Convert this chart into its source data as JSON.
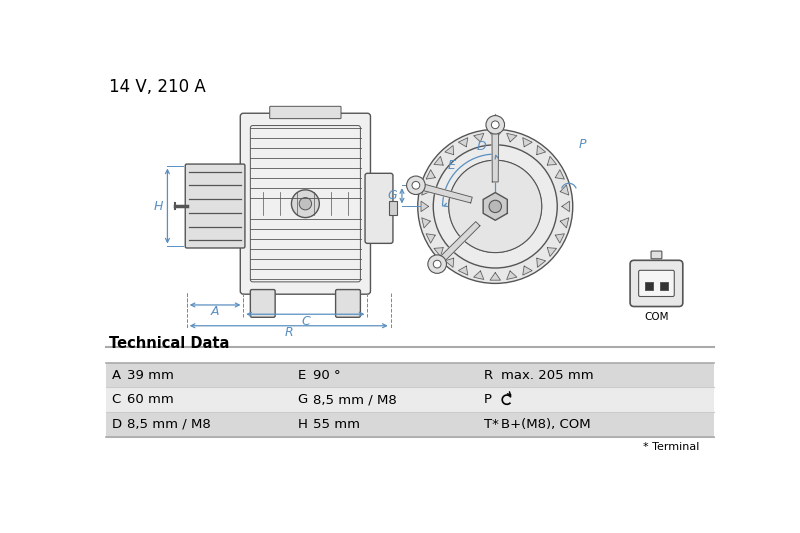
{
  "title": "14 V, 210 A",
  "title_fontsize": 12,
  "bg_color": "#ffffff",
  "diagram_color": "#5a8fc0",
  "line_color": "#555555",
  "part_fill": "#f0f0f0",
  "table_header": "Technical Data",
  "table_rows": [
    [
      "A",
      "39 mm",
      "E",
      "90 °",
      "R",
      "max. 205 mm"
    ],
    [
      "C",
      "60 mm",
      "G",
      "8,5 mm / M8",
      "P",
      "↺"
    ],
    [
      "D",
      "8,5 mm / M8",
      "H",
      "55 mm",
      "T*",
      "B+(M8), COM"
    ]
  ],
  "table_note": "* Terminal",
  "row_bg_colors": [
    "#d8d8d8",
    "#ebebeb",
    "#d8d8d8"
  ],
  "header_line_color": "#888888",
  "lw_part": 1.0,
  "lw_dim": 0.9
}
